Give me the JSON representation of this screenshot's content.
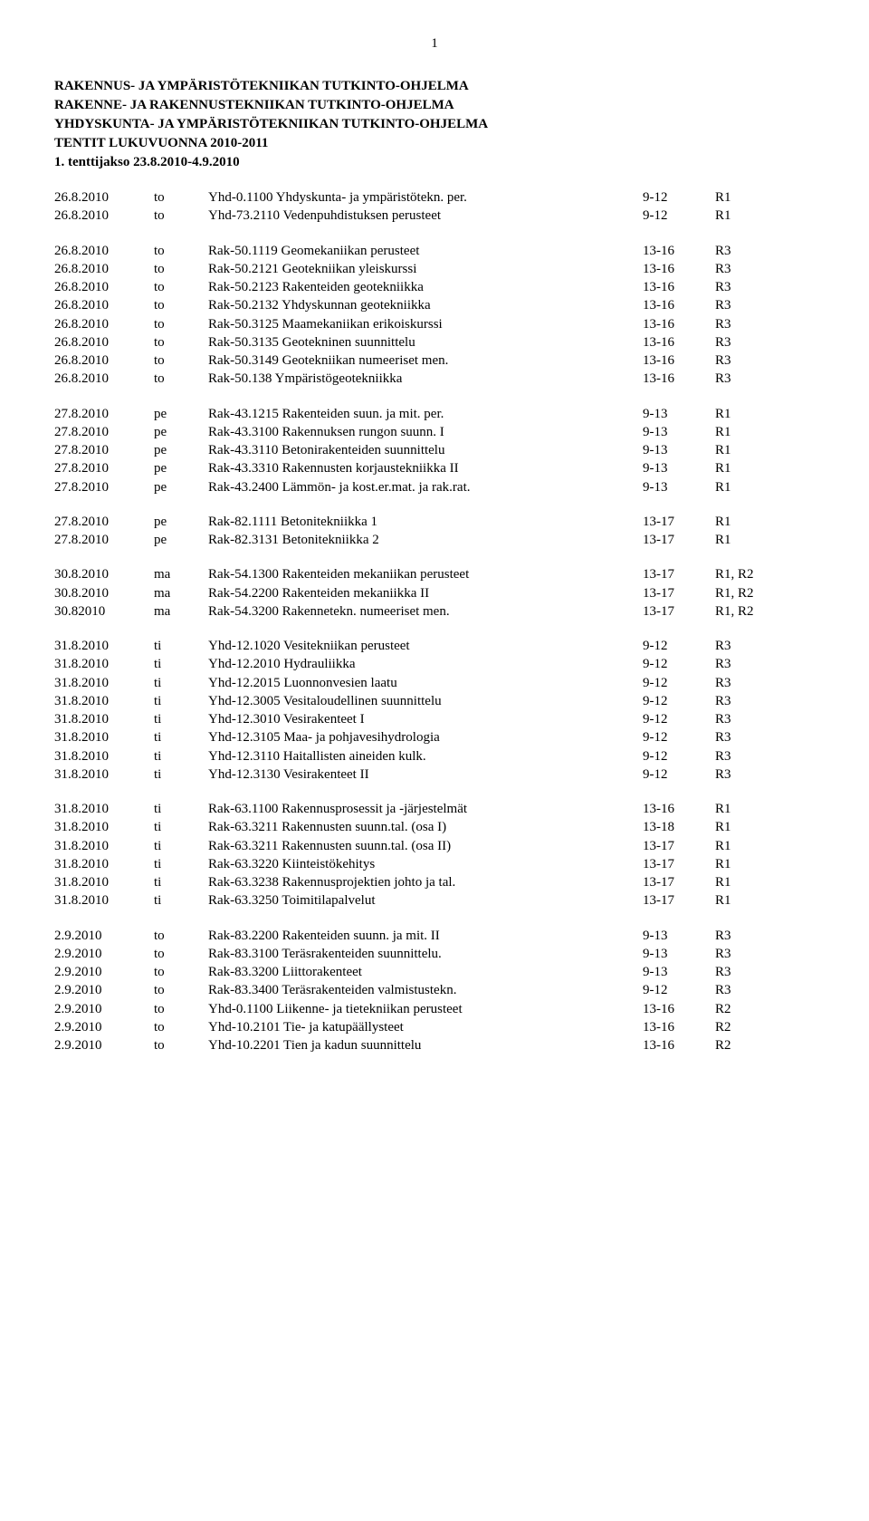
{
  "page_number": "1",
  "headers": [
    "RAKENNUS- JA YMPÄRISTÖTEKNIIKAN TUTKINTO-OHJELMA",
    "RAKENNE- JA RAKENNUSTEKNIIKAN TUTKINTO-OHJELMA",
    "YHDYSKUNTA- JA YMPÄRISTÖTEKNIIKAN TUTKINTO-OHJELMA",
    "TENTIT LUKUVUONNA 2010-2011"
  ],
  "period_label": "1. tenttijakso 23.8.2010-4.9.2010",
  "groups": [
    [
      {
        "date": "26.8.2010",
        "day": "to",
        "desc": "Yhd-0.1100 Yhdyskunta- ja ympäristötekn. per.",
        "time": "9-12",
        "room": "R1"
      },
      {
        "date": "26.8.2010",
        "day": "to",
        "desc": "Yhd-73.2110 Vedenpuhdistuksen perusteet",
        "time": "9-12",
        "room": "R1"
      }
    ],
    [
      {
        "date": "26.8.2010",
        "day": "to",
        "desc": "Rak-50.1119 Geomekaniikan perusteet",
        "time": "13-16",
        "room": "R3"
      },
      {
        "date": "26.8.2010",
        "day": "to",
        "desc": "Rak-50.2121 Geotekniikan yleiskurssi",
        "time": "13-16",
        "room": "R3"
      },
      {
        "date": "26.8.2010",
        "day": "to",
        "desc": "Rak-50.2123 Rakenteiden geotekniikka",
        "time": "13-16",
        "room": "R3"
      },
      {
        "date": "26.8.2010",
        "day": "to",
        "desc": "Rak-50.2132 Yhdyskunnan geotekniikka",
        "time": "13-16",
        "room": "R3"
      },
      {
        "date": "26.8.2010",
        "day": "to",
        "desc": "Rak-50.3125 Maamekaniikan erikoiskurssi",
        "time": "13-16",
        "room": "R3"
      },
      {
        "date": "26.8.2010",
        "day": "to",
        "desc": "Rak-50.3135 Geotekninen suunnittelu",
        "time": "13-16",
        "room": "R3"
      },
      {
        "date": "26.8.2010",
        "day": "to",
        "desc": "Rak-50.3149 Geotekniikan numeeriset men.",
        "time": "13-16",
        "room": "R3"
      },
      {
        "date": "26.8.2010",
        "day": "to",
        "desc": "Rak-50.138 Ympäristögeotekniikka",
        "time": "13-16",
        "room": "R3"
      }
    ],
    [
      {
        "date": "27.8.2010",
        "day": "pe",
        "desc": "Rak-43.1215 Rakenteiden suun. ja mit. per.",
        "time": "9-13",
        "room": "R1"
      },
      {
        "date": "27.8.2010",
        "day": "pe",
        "desc": "Rak-43.3100 Rakennuksen rungon suunn. I",
        "time": "9-13",
        "room": "R1"
      },
      {
        "date": "27.8.2010",
        "day": "pe",
        "desc": "Rak-43.3110 Betonirakenteiden suunnittelu",
        "time": "9-13",
        "room": "R1"
      },
      {
        "date": "27.8.2010",
        "day": "pe",
        "desc": "Rak-43.3310 Rakennusten korjaustekniikka II",
        "time": "9-13",
        "room": "R1"
      },
      {
        "date": "27.8.2010",
        "day": "pe",
        "desc": "Rak-43.2400 Lämmön- ja kost.er.mat. ja rak.rat.",
        "time": "9-13",
        "room": "R1"
      }
    ],
    [
      {
        "date": "27.8.2010",
        "day": "pe",
        "desc": "Rak-82.1111 Betonitekniikka 1",
        "time": "13-17",
        "room": "R1"
      },
      {
        "date": "27.8.2010",
        "day": "pe",
        "desc": "Rak-82.3131 Betonitekniikka 2",
        "time": "13-17",
        "room": "R1"
      }
    ],
    [
      {
        "date": "30.8.2010",
        "day": "ma",
        "desc": "Rak-54.1300 Rakenteiden mekaniikan perusteet",
        "time": "13-17",
        "room": "R1, R2"
      },
      {
        "date": "30.8.2010",
        "day": "ma",
        "desc": "Rak-54.2200 Rakenteiden mekaniikka II",
        "time": "13-17",
        "room": "R1, R2"
      },
      {
        "date": "30.82010",
        "day": "ma",
        "desc": "Rak-54.3200 Rakennetekn. numeeriset men.",
        "time": "13-17",
        "room": "R1, R2"
      }
    ],
    [
      {
        "date": "31.8.2010",
        "day": "ti",
        "desc": "Yhd-12.1020 Vesitekniikan perusteet",
        "time": "9-12",
        "room": "R3"
      },
      {
        "date": "31.8.2010",
        "day": "ti",
        "desc": "Yhd-12.2010 Hydrauliikka",
        "time": "9-12",
        "room": "R3"
      },
      {
        "date": "31.8.2010",
        "day": "ti",
        "desc": "Yhd-12.2015 Luonnonvesien laatu",
        "time": "9-12",
        "room": "R3"
      },
      {
        "date": "31.8.2010",
        "day": "ti",
        "desc": "Yhd-12.3005 Vesitaloudellinen suunnittelu",
        "time": "9-12",
        "room": "R3"
      },
      {
        "date": "31.8.2010",
        "day": "ti",
        "desc": "Yhd-12.3010 Vesirakenteet I",
        "time": "9-12",
        "room": "R3"
      },
      {
        "date": "31.8.2010",
        "day": "ti",
        "desc": "Yhd-12.3105 Maa- ja pohjavesihydrologia",
        "time": "9-12",
        "room": "R3"
      },
      {
        "date": "31.8.2010",
        "day": "ti",
        "desc": "Yhd-12.3110 Haitallisten aineiden kulk.",
        "time": "9-12",
        "room": "R3"
      },
      {
        "date": "31.8.2010",
        "day": "ti",
        "desc": "Yhd-12.3130 Vesirakenteet II",
        "time": "9-12",
        "room": "R3"
      }
    ],
    [
      {
        "date": "31.8.2010",
        "day": "ti",
        "desc": "Rak-63.1100 Rakennusprosessit ja -järjestelmät",
        "time": "13-16",
        "room": "R1"
      },
      {
        "date": "31.8.2010",
        "day": "ti",
        "desc": "Rak-63.3211 Rakennusten suunn.tal. (osa I)",
        "time": "13-18",
        "room": "R1"
      },
      {
        "date": "31.8.2010",
        "day": "ti",
        "desc": "Rak-63.3211 Rakennusten suunn.tal. (osa II)",
        "time": "13-17",
        "room": "R1"
      },
      {
        "date": "31.8.2010",
        "day": "ti",
        "desc": "Rak-63.3220 Kiinteistökehitys",
        "time": "13-17",
        "room": "R1"
      },
      {
        "date": "31.8.2010",
        "day": "ti",
        "desc": "Rak-63.3238 Rakennusprojektien johto ja tal.",
        "time": "13-17",
        "room": "R1"
      },
      {
        "date": "31.8.2010",
        "day": "ti",
        "desc": "Rak-63.3250 Toimitilapalvelut",
        "time": "13-17",
        "room": "R1"
      }
    ],
    [
      {
        "date": "2.9.2010",
        "day": "to",
        "desc": "Rak-83.2200 Rakenteiden suunn. ja mit. II",
        "time": "9-13",
        "room": "R3"
      },
      {
        "date": "2.9.2010",
        "day": "to",
        "desc": "Rak-83.3100 Teräsrakenteiden suunnittelu.",
        "time": "9-13",
        "room": "R3"
      },
      {
        "date": "2.9.2010",
        "day": "to",
        "desc": "Rak-83.3200 Liittorakenteet",
        "time": "9-13",
        "room": "R3"
      },
      {
        "date": "2.9.2010",
        "day": "to",
        "desc": "Rak-83.3400 Teräsrakenteiden valmistustekn.",
        "time": "9-12",
        "room": "R3"
      },
      {
        "date": "2.9.2010",
        "day": "to",
        "desc": "Yhd-0.1100 Liikenne- ja tietekniikan perusteet",
        "time": "13-16",
        "room": "R2"
      },
      {
        "date": "2.9.2010",
        "day": "to",
        "desc": "Yhd-10.2101 Tie- ja katupäällysteet",
        "time": "13-16",
        "room": "R2"
      },
      {
        "date": "2.9.2010",
        "day": "to",
        "desc": "Yhd-10.2201 Tien ja kadun suunnittelu",
        "time": "13-16",
        "room": "R2"
      }
    ]
  ]
}
